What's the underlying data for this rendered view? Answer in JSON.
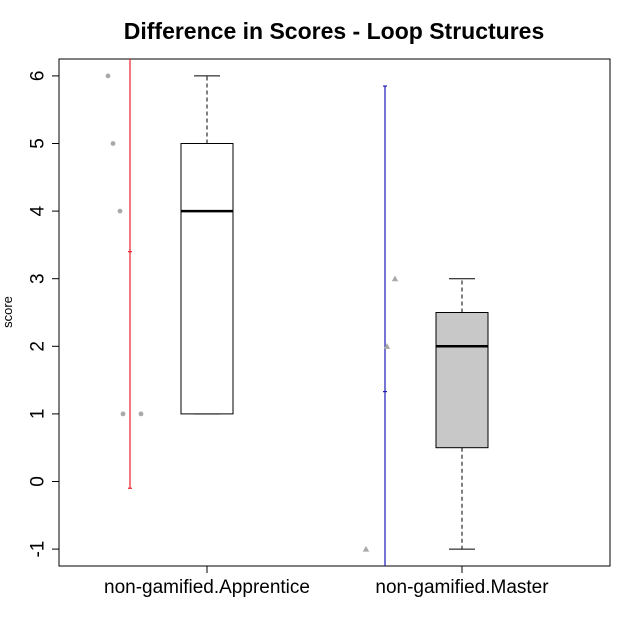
{
  "chart_data": {
    "type": "box",
    "title": "Difference in Scores - Loop Structures",
    "xlabel": "",
    "ylabel": "score",
    "ylim": [
      -1.25,
      6.25
    ],
    "yticks": [
      -1,
      0,
      1,
      2,
      3,
      4,
      5,
      6
    ],
    "categories": [
      "non-gamified.Apprentice",
      "non-gamified.Master"
    ],
    "boxes": [
      {
        "category": "non-gamified.Apprentice",
        "whisker_low": 1,
        "q1": 1,
        "median": 4,
        "q3": 5,
        "whisker_high": 6,
        "fill": "#ffffff"
      },
      {
        "category": "non-gamified.Master",
        "whisker_low": -1,
        "q1": 0.5,
        "median": 2,
        "q3": 2.5,
        "whisker_high": 3,
        "fill": "#c8c8c8"
      }
    ],
    "points": [
      {
        "category": "non-gamified.Apprentice",
        "y": 6,
        "shape": "circle"
      },
      {
        "category": "non-gamified.Apprentice",
        "y": 5,
        "shape": "circle"
      },
      {
        "category": "non-gamified.Apprentice",
        "y": 4,
        "shape": "circle"
      },
      {
        "category": "non-gamified.Apprentice",
        "y": 1,
        "shape": "circle"
      },
      {
        "category": "non-gamified.Apprentice",
        "y": 1,
        "shape": "circle"
      },
      {
        "category": "non-gamified.Master",
        "y": -1,
        "shape": "triangle"
      },
      {
        "category": "non-gamified.Master",
        "y": 2,
        "shape": "triangle"
      },
      {
        "category": "non-gamified.Master",
        "y": 3,
        "shape": "triangle"
      }
    ],
    "intervals": [
      {
        "category": "non-gamified.Apprentice",
        "low": -0.1,
        "mid": 3.4,
        "high": 7.0,
        "color": "#e8202a"
      },
      {
        "category": "non-gamified.Master",
        "low": -1.5,
        "mid": 1.33,
        "high": 5.85,
        "color": "#1a1ab4"
      }
    ],
    "grid": false,
    "legend": "none"
  }
}
